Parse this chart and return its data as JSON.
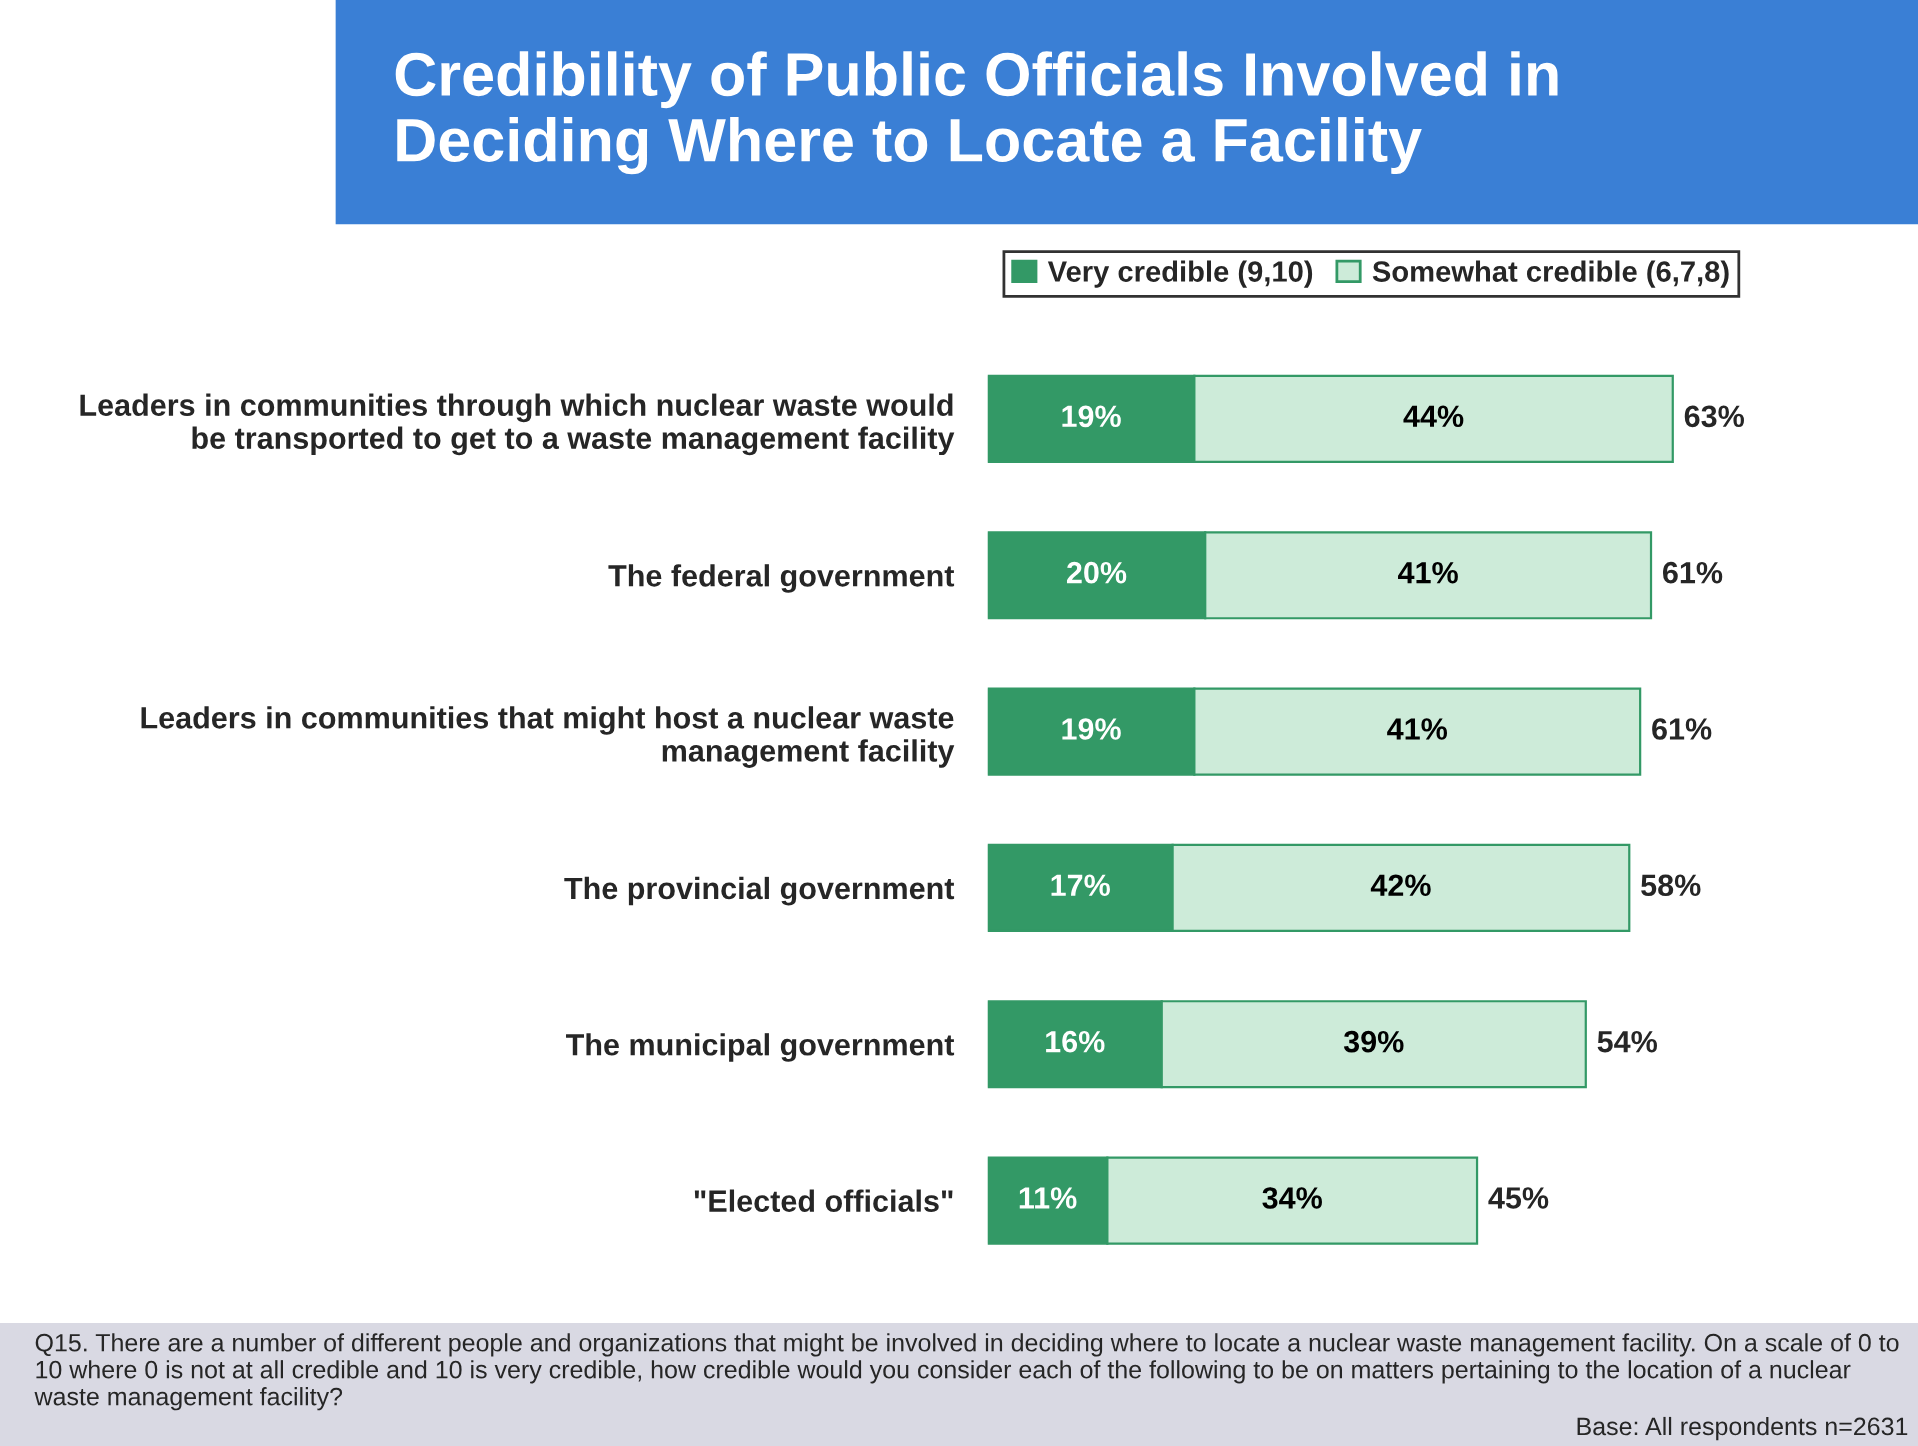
{
  "chart_data": {
    "type": "bar",
    "orientation": "horizontal",
    "stacked": true,
    "title": "Credibility of Public Officials Involved in\nDeciding Where to Locate a Facility",
    "categories": [
      "Leaders in communities through which nuclear waste would\nbe transported to get to a waste management facility",
      "The federal government",
      "Leaders in communities that might host a nuclear waste\nmanagement facility",
      "The provincial government",
      "The municipal government",
      "\"Elected officials\""
    ],
    "series": [
      {
        "name": "Very credible (9,10)",
        "color": "#339966",
        "values": [
          19,
          20,
          19,
          17,
          16,
          11
        ],
        "value_labels": [
          "19%",
          "20%",
          "19%",
          "17%",
          "16%",
          "11%"
        ]
      },
      {
        "name": "Somewhat credible (6,7,8)",
        "color": "#cdebd9",
        "values": [
          44,
          41,
          41,
          42,
          39,
          34
        ],
        "value_labels": [
          "44%",
          "41%",
          "41%",
          "42%",
          "39%",
          "34%"
        ]
      }
    ],
    "totals": [
      "63%",
      "61%",
      "61%",
      "58%",
      "54%",
      "45%"
    ],
    "legend": "top",
    "grid": false,
    "annotations": [
      "Q15. There are a number of different people and organizations that might be involved in deciding where to locate a nuclear waste management facility. On a scale of 0 to 10 where 0 is not at all credible and 10 is very credible, how credible would you consider each of the following to be on matters pertaining to the location of a nuclear waste management facility?",
      "Base: All respondents n=2631"
    ]
  }
}
